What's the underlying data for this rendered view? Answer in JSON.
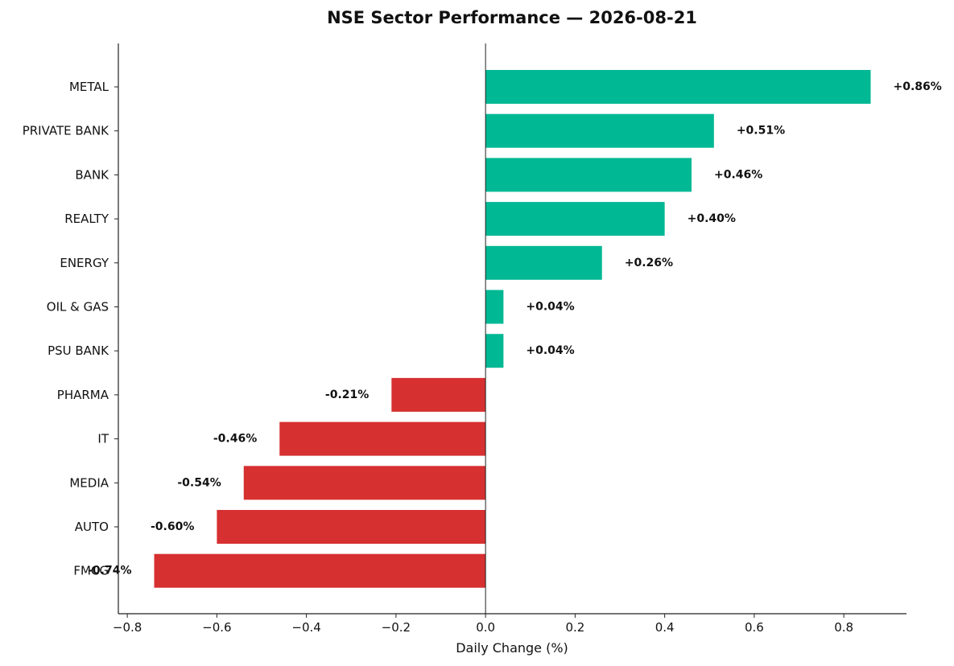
{
  "chart_data": {
    "type": "bar",
    "orientation": "horizontal",
    "title": "NSE Sector Performance — 2026-08-21",
    "xlabel": "Daily Change (%)",
    "ylabel": "",
    "xlim": [
      -0.82,
      0.94
    ],
    "xticks": [
      -0.8,
      -0.6,
      -0.4,
      -0.2,
      0.0,
      0.2,
      0.4,
      0.6,
      0.8
    ],
    "xtick_labels": [
      "−0.8",
      "−0.6",
      "−0.4",
      "−0.2",
      "0.0",
      "0.2",
      "0.4",
      "0.6",
      "0.8"
    ],
    "grid": false,
    "categories": [
      "METAL",
      "PRIVATE BANK",
      "BANK",
      "REALTY",
      "ENERGY",
      "OIL & GAS",
      "PSU BANK",
      "PHARMA",
      "IT",
      "MEDIA",
      "AUTO",
      "FMCG"
    ],
    "values": [
      0.86,
      0.51,
      0.46,
      0.4,
      0.26,
      0.04,
      0.04,
      -0.21,
      -0.46,
      -0.54,
      -0.6,
      -0.74
    ],
    "data_labels": [
      "+0.86%",
      "+0.51%",
      "+0.46%",
      "+0.40%",
      "+0.26%",
      "+0.04%",
      "+0.04%",
      "-0.21%",
      "-0.46%",
      "-0.54%",
      "-0.60%",
      "-0.74%"
    ],
    "colors": {
      "positive": "#00b894",
      "negative": "#d63031",
      "axis": "#222222"
    }
  }
}
